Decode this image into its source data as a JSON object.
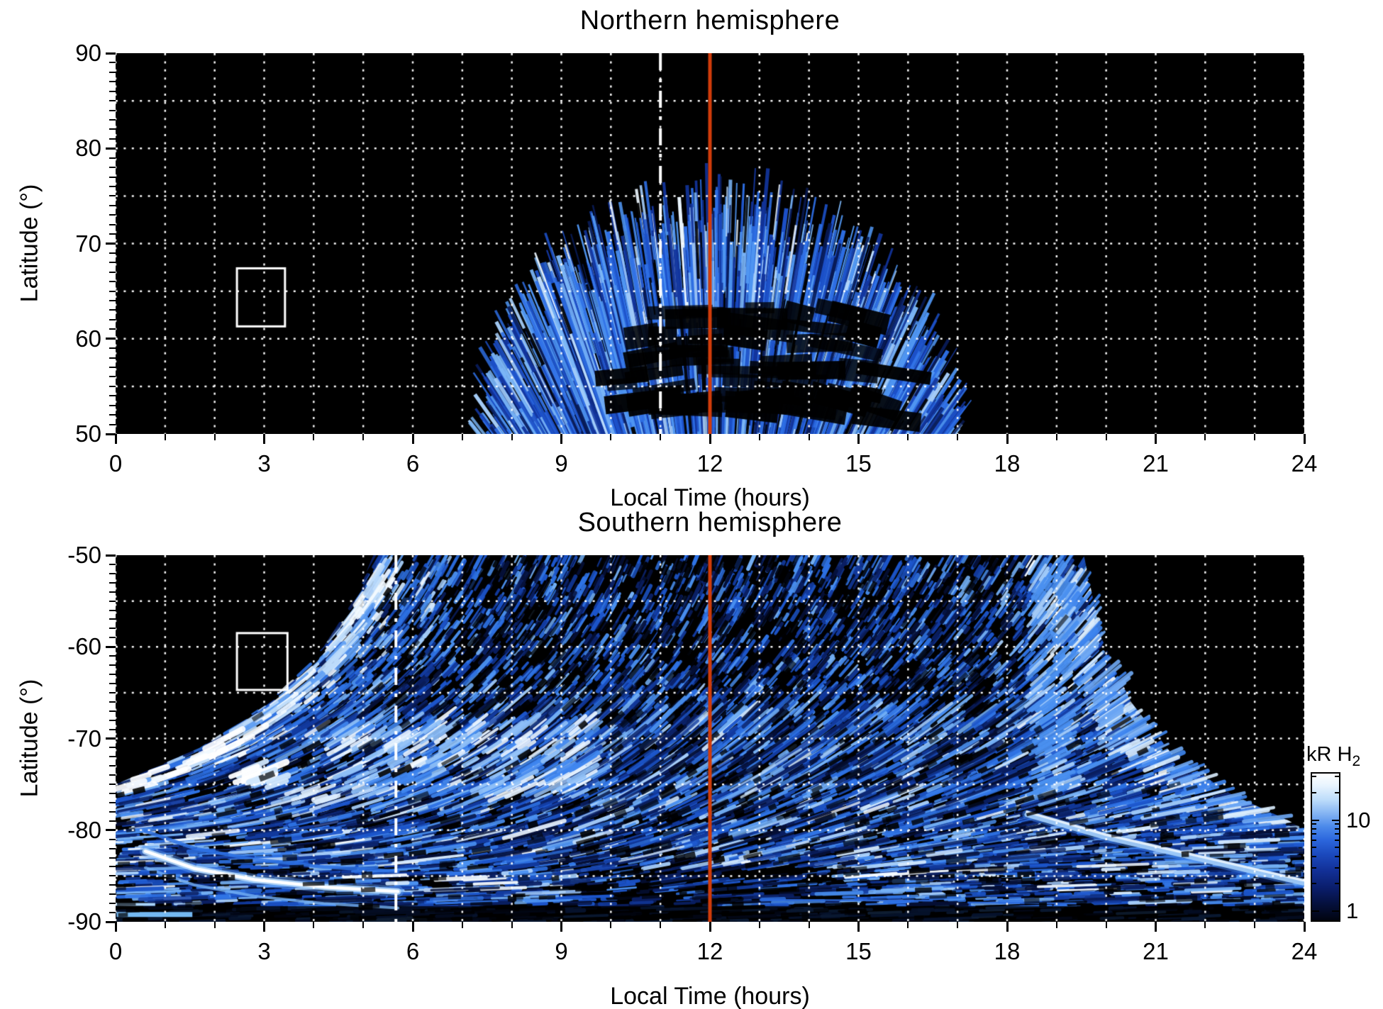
{
  "panels": {
    "north": {
      "title": "Northern hemisphere",
      "xlabel": "Local Time (hours)",
      "ylabel": "Latitude (°)",
      "x_tick_labels": [
        "0",
        "3",
        "6",
        "9",
        "12",
        "15",
        "18",
        "21",
        "24"
      ],
      "y_tick_labels": [
        "90",
        "80",
        "70",
        "60",
        "50"
      ],
      "x_range_hours": [
        0,
        24
      ],
      "y_range_deg": [
        50,
        90
      ],
      "noon_line_hour": 12,
      "dashdot_line_hour": 11.0,
      "white_box": {
        "hour_min": 2.45,
        "hour_max": 3.42,
        "lat_min": 61.3,
        "lat_max": 67.4
      }
    },
    "south": {
      "title": "Southern hemisphere",
      "xlabel": "Local Time (hours)",
      "ylabel": "Latitude (°)",
      "x_tick_labels": [
        "0",
        "3",
        "6",
        "9",
        "12",
        "15",
        "18",
        "21",
        "24"
      ],
      "y_tick_labels": [
        "-50",
        "-60",
        "-70",
        "-80",
        "-90"
      ],
      "x_range_hours": [
        0,
        24
      ],
      "y_range_deg": [
        -90,
        -50
      ],
      "noon_line_hour": 12,
      "dashdot_line_hour": 5.66,
      "white_box": {
        "hour_min": 2.45,
        "hour_max": 3.47,
        "lat_min": -64.7,
        "lat_max": -58.5
      }
    }
  },
  "colorbar": {
    "title_main": "kR H",
    "title_sub": "2",
    "tick_labels": [
      "10",
      "1"
    ],
    "tick_values": [
      10,
      1
    ],
    "scale": "logarithmic",
    "top_color": "#ffffff",
    "bottom_color": "#000000"
  },
  "colors": {
    "page_background": "#ffffff",
    "plot_background": "#000000",
    "grid": "#ffffff",
    "noon_line": "#d13c0a",
    "dashdot_line": "#ffffff",
    "box_outline": "#ffffff",
    "text": "#000000"
  },
  "chart_data": [
    {
      "type": "heatmap",
      "title": "Northern hemisphere",
      "xlabel": "Local Time (hours)",
      "ylabel": "Latitude (°)",
      "x_range": [
        0,
        24
      ],
      "x_major_ticks": [
        0,
        3,
        6,
        9,
        12,
        15,
        18,
        21,
        24
      ],
      "x_minor_step_hours": 1,
      "y_range": [
        50,
        90
      ],
      "y_major_ticks": [
        50,
        60,
        70,
        80,
        90
      ],
      "y_minor_step_deg": 1,
      "grid_dotted_step_deg": 5,
      "grid_dotted_step_hours": 1,
      "colormap": "black to blue to white, logarithmic, kR H2 emission brightness",
      "annotations": [
        {
          "type": "vline",
          "x": 12,
          "style": "solid",
          "color": "#d13c0a"
        },
        {
          "type": "vline",
          "x": 11.0,
          "style": "dash-dot",
          "color": "#ffffff"
        },
        {
          "type": "rect",
          "x": [
            2.45,
            3.42
          ],
          "y": [
            61.3,
            67.4
          ],
          "style": "white outline"
        }
      ],
      "emission": {
        "description": "single dayside auroral emission dome of fine radial blue streaks on black background",
        "base_local_time_extent_hours": [
          7.7,
          17.2
        ],
        "apex": {
          "local_time": 12.15,
          "latitude": 74.5
        },
        "brightest": "9-13 h between 60 and 73 deg, whitish streak tips 10-12.5 h near 66-73 deg",
        "dark_patches": "52-63 deg between 10.3 and 15.5 h",
        "intensity_range_kR": [
          1,
          30
        ]
      }
    },
    {
      "type": "heatmap",
      "title": "Southern hemisphere",
      "xlabel": "Local Time (hours)",
      "ylabel": "Latitude (°)",
      "x_range": [
        0,
        24
      ],
      "x_major_ticks": [
        0,
        3,
        6,
        9,
        12,
        15,
        18,
        21,
        24
      ],
      "x_minor_step_hours": 1,
      "y_range": [
        -90,
        -50
      ],
      "y_major_ticks": [
        -50,
        -60,
        -70,
        -80,
        -90
      ],
      "y_minor_step_deg": 1,
      "grid_dotted_step_deg": 5,
      "grid_dotted_step_hours": 1,
      "colormap": "black to blue to white, logarithmic, kR H2 emission brightness",
      "annotations": [
        {
          "type": "vline",
          "x": 12,
          "style": "solid",
          "color": "#d13c0a"
        },
        {
          "type": "vline",
          "x": 5.66,
          "style": "dash-dot",
          "color": "#ffffff"
        },
        {
          "type": "rect",
          "x": [
            2.45,
            3.47
          ],
          "y": [
            -64.7,
            -58.5
          ],
          "style": "white outline"
        }
      ],
      "emission": {
        "description": "speckled blue emission over most of the panel; dark void wedges at dawn (0-5 h) and dusk (19.5-24 h) above -75 deg",
        "dawn_boundary_points_hours_lat": [
          [
            5.2,
            -50
          ],
          [
            4.9,
            -54
          ],
          [
            4.2,
            -60
          ],
          [
            3.1,
            -66
          ],
          [
            1.7,
            -71
          ],
          [
            0,
            -75
          ]
        ],
        "dusk_boundary_points_hours_lat": [
          [
            19.55,
            -50
          ],
          [
            19.9,
            -59
          ],
          [
            20.5,
            -66
          ],
          [
            21.3,
            -71.5
          ],
          [
            22.5,
            -76
          ],
          [
            23.7,
            -79
          ],
          [
            24,
            -80
          ]
        ],
        "bright_arc_dawn_bottom_points": [
          [
            0.6,
            -82.3
          ],
          [
            1.6,
            -84.2
          ],
          [
            2.8,
            -85.4
          ],
          [
            4.2,
            -86.2
          ],
          [
            5.7,
            -86.7
          ]
        ],
        "bright_arc_dusk_bottom_points": [
          [
            18.4,
            -78.3
          ],
          [
            20.0,
            -80.8
          ],
          [
            21.6,
            -82.8
          ],
          [
            23.2,
            -84.8
          ],
          [
            24,
            -85.8
          ]
        ],
        "bright_features": [
          "bright streaks along the dawn boundary, whitest near 2.5-4 h at -70 to -77 deg",
          "bright feathered streaks along the dusk boundary",
          "bright column 18.6-19.3 h from -50 to -75 deg",
          "bright patch 4.5-9.5 h near -68 to -76 deg",
          "cyan streak 0-1.6 h near -89 deg"
        ],
        "dark_features": [
          "bottom-center void 9.3-14.7 h below -84 deg",
          "mostly black band below -88 deg",
          "speckled black gaps throughout interior"
        ],
        "intensity_range_kR": [
          1,
          30
        ]
      }
    }
  ],
  "colorbar_data": {
    "label": "kR H2",
    "scale": "log",
    "tick_values": [
      10,
      1
    ],
    "approx_data_range_kR": [
      0.8,
      33
    ]
  }
}
